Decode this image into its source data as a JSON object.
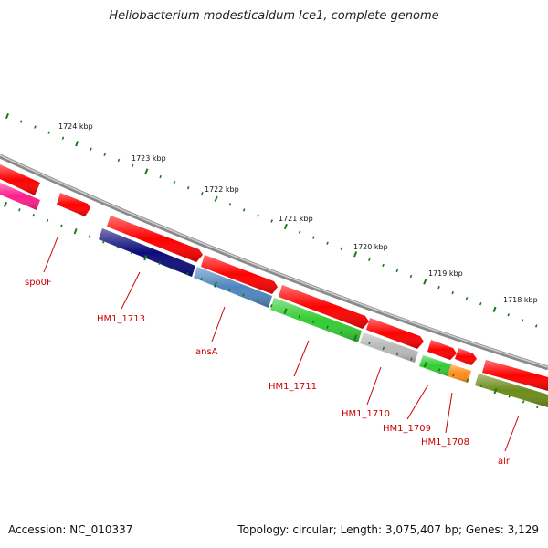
{
  "title": "Heliobacterium modesticaldum Ice1, complete genome",
  "footer": {
    "accession": "Accession: NC_010337",
    "summary": "Topology: circular; Length: 3,075,407 bp; Genes: 3,129"
  },
  "scale": {
    "unit": "kbp",
    "labels": [
      "1724 kbp",
      "1723 kbp",
      "1722 kbp",
      "1721 kbp",
      "1720 kbp",
      "1719 kbp",
      "1718 kbp"
    ]
  },
  "colors": {
    "backbone": "#8a8a8a",
    "forward_cds": "#ff0000",
    "label": "#cc0000",
    "tick": "#1a7a1a"
  },
  "genes": [
    {
      "label": "spo0F",
      "color": "#ff1e8c"
    },
    {
      "label": "HM1_1713",
      "color": "#0c0c7a"
    },
    {
      "label": "ansA",
      "color": "#4f86bf"
    },
    {
      "label": "HM1_1711",
      "color": "#33cc33"
    },
    {
      "label": "HM1_1710",
      "color": "#b9b9b9"
    },
    {
      "label": "HM1_1709",
      "color": "#33cc33"
    },
    {
      "label": "HM1_1708",
      "color": "#ff8c1a"
    },
    {
      "label": "alr",
      "color": "#6b8c1a"
    }
  ]
}
